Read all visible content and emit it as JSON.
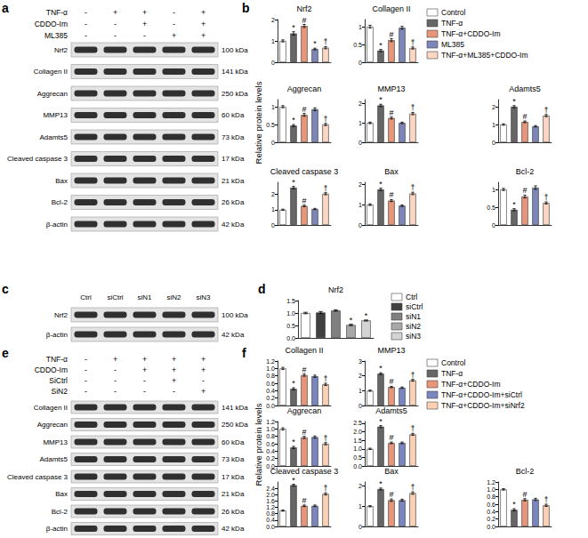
{
  "panels": [
    "a",
    "b",
    "c",
    "d",
    "e",
    "f"
  ],
  "blots": [
    {
      "panel": "a",
      "conditions": [
        {
          "name": "TNF-α",
          "signs": [
            "-",
            "+",
            "+",
            "-",
            "+"
          ]
        },
        {
          "name": "CDDO-Im",
          "signs": [
            "-",
            "-",
            "+",
            "-",
            "+"
          ]
        },
        {
          "name": "ML385",
          "signs": [
            "-",
            "-",
            "-",
            "+",
            "+"
          ]
        }
      ],
      "rows": [
        {
          "name": "Nrf2",
          "size": "100 kDa"
        },
        {
          "name": "Collagen II",
          "size": "141 kDa"
        },
        {
          "name": "Aggrecan",
          "size": "250 kDa"
        },
        {
          "name": "MMP13",
          "size": "60 kDa"
        },
        {
          "name": "Adamts5",
          "size": "73 kDa"
        },
        {
          "name": "Cleaved caspase 3",
          "size": "17 kDa"
        },
        {
          "name": "Bax",
          "size": "21 kDa"
        },
        {
          "name": "Bcl-2",
          "size": "26 kDa"
        },
        {
          "name": "β-actin",
          "size": "42 kDa"
        }
      ]
    },
    {
      "panel": "c",
      "lanes": [
        "Ctrl",
        "siCtrl",
        "siN1",
        "siN2",
        "siN3"
      ],
      "rows": [
        {
          "name": "Nrf2",
          "size": "100 kDa"
        },
        {
          "name": "β-actin",
          "size": "42 kDa"
        }
      ]
    },
    {
      "panel": "e",
      "conditions": [
        {
          "name": "TNF-α",
          "signs": [
            "-",
            "+",
            "+",
            "+",
            "+"
          ]
        },
        {
          "name": "CDDO-Im",
          "signs": [
            "-",
            "-",
            "+",
            "+",
            "+"
          ]
        },
        {
          "name": "SiCtrl",
          "signs": [
            "-",
            "-",
            "-",
            "+",
            "-"
          ]
        },
        {
          "name": "SiN2",
          "signs": [
            "-",
            "-",
            "-",
            "-",
            "+"
          ]
        }
      ],
      "rows": [
        {
          "name": "Collagen II",
          "size": "141 kDa"
        },
        {
          "name": "Aggrecan",
          "size": "250 kDa"
        },
        {
          "name": "MMP13",
          "size": "60 kDa"
        },
        {
          "name": "Adamts5",
          "size": "73 kDa"
        },
        {
          "name": "Cleaved caspase 3",
          "size": "17 kDa"
        },
        {
          "name": "Bax",
          "size": "21 kDa"
        },
        {
          "name": "Bcl-2",
          "size": "26 kDa"
        },
        {
          "name": "β-actin",
          "size": "42 kDa"
        }
      ]
    }
  ],
  "ylabels": [
    {
      "panel": "b",
      "text": "Relative protein levels"
    },
    {
      "panel": "f",
      "text": "Relative protein levels"
    }
  ],
  "chart_data": [
    {
      "type": "bar",
      "panel": "b",
      "title": "Nrf2",
      "categories": [
        "Control",
        "TNF-α",
        "TNF-α+CDDO-Im",
        "ML385",
        "TNF-α+ML385+CDDO-Im"
      ],
      "colors": [
        "#ffffff",
        "#666666",
        "#e8967a",
        "#7c86b8",
        "#fbd6c2"
      ],
      "values": [
        1,
        1.35,
        1.7,
        0.62,
        0.68
      ],
      "errors": [
        0.05,
        0.08,
        0.07,
        0.04,
        0.05
      ],
      "annotations": [
        null,
        "*",
        "#",
        "*",
        "†"
      ],
      "ylim": [
        0,
        2
      ],
      "yticks": [
        0,
        1,
        2
      ],
      "grid": false,
      "tick_labels": "y"
    },
    {
      "type": "bar",
      "panel": "b",
      "title": "Collagen II",
      "categories": [
        "Control",
        "TNF-α",
        "TNF-α+CDDO-Im",
        "ML385",
        "TNF-α+ML385+CDDO-Im"
      ],
      "colors": [
        "#ffffff",
        "#666666",
        "#e8967a",
        "#7c86b8",
        "#fbd6c2"
      ],
      "values": [
        1,
        0.33,
        0.62,
        0.97,
        0.4
      ],
      "errors": [
        0.04,
        0.03,
        0.04,
        0.04,
        0.03
      ],
      "annotations": [
        null,
        "*",
        "#",
        null,
        "†"
      ],
      "ylim": [
        0,
        1.2
      ],
      "yticks": [
        0,
        0.5,
        1
      ],
      "grid": false,
      "tick_labels": "y"
    },
    {
      "type": "bar",
      "panel": "b",
      "title": "Aggrecan",
      "categories": [
        "Control",
        "TNF-α",
        "TNF-α+CDDO-Im",
        "ML385",
        "TNF-α+ML385+CDDO-Im"
      ],
      "colors": [
        "#ffffff",
        "#666666",
        "#e8967a",
        "#7c86b8",
        "#fbd6c2"
      ],
      "values": [
        1,
        0.47,
        0.77,
        0.93,
        0.5
      ],
      "errors": [
        0.03,
        0.03,
        0.04,
        0.04,
        0.03
      ],
      "annotations": [
        null,
        "*",
        "#",
        null,
        "†"
      ],
      "ylim": [
        0,
        1.2
      ],
      "yticks": [
        0,
        0.5,
        1
      ],
      "grid": false,
      "tick_labels": "y"
    },
    {
      "type": "bar",
      "panel": "b",
      "title": "MMP13",
      "categories": [
        "Control",
        "TNF-α",
        "TNF-α+CDDO-Im",
        "ML385",
        "TNF-α+ML385+CDDO-Im"
      ],
      "colors": [
        "#ffffff",
        "#666666",
        "#e8967a",
        "#7c86b8",
        "#fbd6c2"
      ],
      "values": [
        1,
        1.9,
        1.25,
        1.0,
        1.48
      ],
      "errors": [
        0.04,
        0.06,
        0.05,
        0.04,
        0.06
      ],
      "annotations": [
        null,
        "*",
        "#",
        null,
        "†"
      ],
      "ylim": [
        0,
        2.2
      ],
      "yticks": [
        0,
        1,
        2
      ],
      "grid": false,
      "tick_labels": "y"
    },
    {
      "type": "bar",
      "panel": "b",
      "title": "Adamts5",
      "categories": [
        "Control",
        "TNF-α",
        "TNF-α+CDDO-Im",
        "ML385",
        "TNF-α+ML385+CDDO-Im"
      ],
      "colors": [
        "#ffffff",
        "#666666",
        "#e8967a",
        "#7c86b8",
        "#fbd6c2"
      ],
      "values": [
        1,
        2.0,
        1.15,
        0.9,
        1.5
      ],
      "errors": [
        0.04,
        0.06,
        0.05,
        0.04,
        0.06
      ],
      "annotations": [
        null,
        "*",
        "#",
        null,
        "†"
      ],
      "ylim": [
        0,
        2.4
      ],
      "yticks": [
        0,
        1,
        2
      ],
      "grid": false,
      "tick_labels": "y"
    },
    {
      "type": "bar",
      "panel": "b",
      "title": "Cleaved caspase 3",
      "categories": [
        "Control",
        "TNF-α",
        "TNF-α+CDDO-Im",
        "ML385",
        "TNF-α+ML385+CDDO-Im"
      ],
      "colors": [
        "#ffffff",
        "#666666",
        "#e8967a",
        "#7c86b8",
        "#fbd6c2"
      ],
      "values": [
        1,
        2.45,
        1.25,
        1.05,
        2.05
      ],
      "errors": [
        0.04,
        0.08,
        0.05,
        0.04,
        0.07
      ],
      "annotations": [
        null,
        "*",
        "#",
        null,
        "†"
      ],
      "ylim": [
        0,
        2.8
      ],
      "yticks": [
        0,
        1,
        2
      ],
      "grid": false,
      "tick_labels": "y"
    },
    {
      "type": "bar",
      "panel": "b",
      "title": "Bax",
      "categories": [
        "Control",
        "TNF-α",
        "TNF-α+CDDO-Im",
        "ML385",
        "TNF-α+ML385+CDDO-Im"
      ],
      "colors": [
        "#ffffff",
        "#666666",
        "#e8967a",
        "#7c86b8",
        "#fbd6c2"
      ],
      "values": [
        1,
        1.75,
        1.2,
        0.95,
        1.55
      ],
      "errors": [
        0.04,
        0.06,
        0.05,
        0.04,
        0.06
      ],
      "annotations": [
        null,
        "*",
        "#",
        null,
        "†"
      ],
      "ylim": [
        0,
        2.1
      ],
      "yticks": [
        0,
        1,
        2
      ],
      "grid": false,
      "tick_labels": "y"
    },
    {
      "type": "bar",
      "panel": "b",
      "title": "Bcl-2",
      "categories": [
        "Control",
        "TNF-α",
        "TNF-α+CDDO-Im",
        "ML385",
        "TNF-α+ML385+CDDO-Im"
      ],
      "colors": [
        "#ffffff",
        "#666666",
        "#e8967a",
        "#7c86b8",
        "#fbd6c2"
      ],
      "values": [
        1,
        0.43,
        0.8,
        1.05,
        0.62
      ],
      "errors": [
        0.03,
        0.03,
        0.04,
        0.05,
        0.03
      ],
      "annotations": [
        null,
        "*",
        "#",
        null,
        "†"
      ],
      "ylim": [
        0,
        1.2
      ],
      "yticks": [
        0,
        0.5,
        1
      ],
      "grid": false,
      "tick_labels": "y"
    },
    {
      "type": "bar",
      "panel": "d",
      "title": "Nrf2",
      "categories": [
        "Ctrl",
        "siCtrl",
        "siN1",
        "siN2",
        "siN3"
      ],
      "colors": [
        "#ffffff",
        "#404040",
        "#808080",
        "#a8a8a8",
        "#d4d4d4"
      ],
      "values": [
        1,
        1.02,
        1.1,
        0.52,
        0.7
      ],
      "errors": [
        0.03,
        0.04,
        0.03,
        0.03,
        0.02
      ],
      "annotations": [
        null,
        null,
        null,
        "*",
        "*"
      ],
      "ylim": [
        0,
        1.5
      ],
      "yticks": [
        {
          "value": 0,
          "label": "0.0"
        },
        {
          "value": 0.5,
          "label": "0.5"
        },
        {
          "value": 1,
          "label": "1.0"
        },
        {
          "value": 1.5,
          "label": "1.5"
        }
      ],
      "grid": false,
      "tick_labels": "y"
    },
    {
      "type": "bar",
      "panel": "f",
      "title": "Collagen II",
      "categories": [
        "Control",
        "TNF-α",
        "TNF-α+CDDO-Im",
        "TNF-α+CDDO-Im+siCtrl",
        "TNF-α+CDDO-Im+siNrf2"
      ],
      "colors": [
        "#ffffff",
        "#666666",
        "#e8967a",
        "#7a86c0",
        "#fbd0b5"
      ],
      "values": [
        1,
        0.45,
        0.82,
        0.79,
        0.57
      ],
      "errors": [
        0.03,
        0.03,
        0.03,
        0.03,
        0.03
      ],
      "annotations": [
        null,
        "*",
        "#",
        null,
        "†"
      ],
      "ylim": [
        0,
        1.2
      ],
      "yticks": [
        {
          "value": 0,
          "label": "0.0"
        },
        {
          "value": 0.2,
          "label": "0.2"
        },
        {
          "value": 0.4,
          "label": "0.4"
        },
        {
          "value": 0.6,
          "label": "0.6"
        },
        {
          "value": 0.8,
          "label": "0.8"
        },
        {
          "value": 1,
          "label": "1.0"
        },
        {
          "value": 1.2,
          "label": "1.2"
        }
      ],
      "grid": false,
      "tick_labels": "y"
    },
    {
      "type": "bar",
      "panel": "f",
      "title": "MMP13",
      "categories": [
        "Control",
        "TNF-α",
        "TNF-α+CDDO-Im",
        "TNF-α+CDDO-Im+siCtrl",
        "TNF-α+CDDO-Im+siNrf2"
      ],
      "colors": [
        "#ffffff",
        "#666666",
        "#e8967a",
        "#7a86c0",
        "#fbd0b5"
      ],
      "values": [
        1,
        2.15,
        1.25,
        1.2,
        1.7
      ],
      "errors": [
        0.04,
        0.06,
        0.05,
        0.05,
        0.06
      ],
      "annotations": [
        null,
        "*",
        "#",
        null,
        "†"
      ],
      "ylim": [
        0,
        3
      ],
      "yticks": [
        0,
        1,
        2,
        3
      ],
      "grid": false,
      "tick_labels": "y"
    },
    {
      "type": "bar",
      "panel": "f",
      "title": "Aggrecan",
      "categories": [
        "Control",
        "TNF-α",
        "TNF-α+CDDO-Im",
        "TNF-α+CDDO-Im+siCtrl",
        "TNF-α+CDDO-Im+siNrf2"
      ],
      "colors": [
        "#ffffff",
        "#666666",
        "#e8967a",
        "#7a86c0",
        "#fbd0b5"
      ],
      "values": [
        1,
        0.5,
        0.77,
        0.78,
        0.6
      ],
      "errors": [
        0.03,
        0.03,
        0.03,
        0.03,
        0.03
      ],
      "annotations": [
        null,
        "*",
        "#",
        null,
        "†"
      ],
      "ylim": [
        0,
        1.2
      ],
      "yticks": [
        {
          "value": 0,
          "label": "0.0"
        },
        {
          "value": 0.2,
          "label": "0.2"
        },
        {
          "value": 0.4,
          "label": "0.4"
        },
        {
          "value": 0.6,
          "label": "0.6"
        },
        {
          "value": 0.8,
          "label": "0.8"
        },
        {
          "value": 1,
          "label": "1.0"
        },
        {
          "value": 1.2,
          "label": "1.2"
        }
      ],
      "grid": false,
      "tick_labels": "y"
    },
    {
      "type": "bar",
      "panel": "f",
      "title": "Adamts5",
      "categories": [
        "Control",
        "TNF-α",
        "TNF-α+CDDO-Im",
        "TNF-α+CDDO-Im+siCtrl",
        "TNF-α+CDDO-Im+siNrf2"
      ],
      "colors": [
        "#ffffff",
        "#666666",
        "#e8967a",
        "#7a86c0",
        "#fbd0b5"
      ],
      "values": [
        1,
        2.3,
        1.35,
        1.35,
        1.85
      ],
      "errors": [
        0.04,
        0.06,
        0.05,
        0.05,
        0.06
      ],
      "annotations": [
        null,
        "*",
        "#",
        null,
        "†"
      ],
      "ylim": [
        0,
        2.6
      ],
      "yticks": [
        {
          "value": 0,
          "label": "0.0"
        },
        {
          "value": 0.5,
          "label": "0.5"
        },
        {
          "value": 1,
          "label": "1.0"
        },
        {
          "value": 1.5,
          "label": "1.5"
        },
        {
          "value": 2,
          "label": "2.0"
        },
        {
          "value": 2.5,
          "label": "2.5"
        }
      ],
      "grid": false,
      "tick_labels": "y"
    },
    {
      "type": "bar",
      "panel": "f",
      "title": "Cleaved caspase 3",
      "categories": [
        "Control",
        "TNF-α",
        "TNF-α+CDDO-Im",
        "TNF-α+CDDO-Im+siCtrl",
        "TNF-α+CDDO-Im+siNrf2"
      ],
      "colors": [
        "#ffffff",
        "#666666",
        "#e8967a",
        "#7a86c0",
        "#fbd0b5"
      ],
      "values": [
        1,
        2.6,
        1.3,
        1.3,
        2.05
      ],
      "errors": [
        0.04,
        0.06,
        0.05,
        0.05,
        0.07
      ],
      "annotations": [
        null,
        "*",
        "#",
        null,
        "†"
      ],
      "ylim": [
        0,
        2.8
      ],
      "yticks": [
        {
          "value": 0,
          "label": "0.0"
        },
        {
          "value": 0.4,
          "label": "0.4"
        },
        {
          "value": 0.8,
          "label": "0.8"
        },
        {
          "value": 1.2,
          "label": "1.2"
        },
        {
          "value": 1.6,
          "label": "1.6"
        },
        {
          "value": 2,
          "label": "2.0"
        },
        {
          "value": 2.4,
          "label": "2.4"
        }
      ],
      "grid": false,
      "tick_labels": "y"
    },
    {
      "type": "bar",
      "panel": "f",
      "title": "Bax",
      "categories": [
        "Control",
        "TNF-α",
        "TNF-α+CDDO-Im",
        "TNF-α+CDDO-Im+siCtrl",
        "TNF-α+CDDO-Im+siNrf2"
      ],
      "colors": [
        "#ffffff",
        "#666666",
        "#e8967a",
        "#7a86c0",
        "#fbd0b5"
      ],
      "values": [
        1,
        1.85,
        1.3,
        1.3,
        1.65
      ],
      "errors": [
        0.03,
        0.05,
        0.06,
        0.05,
        0.06
      ],
      "annotations": [
        null,
        "*",
        "#",
        null,
        "†"
      ],
      "ylim": [
        0,
        2.2
      ],
      "yticks": [
        0,
        1,
        2
      ],
      "grid": false,
      "tick_labels": "y"
    },
    {
      "type": "bar",
      "panel": "f",
      "title": "Bcl-2",
      "categories": [
        "Control",
        "TNF-α",
        "TNF-α+CDDO-Im",
        "TNF-α+CDDO-Im+siCtrl",
        "TNF-α+CDDO-Im+siNrf2"
      ],
      "colors": [
        "#ffffff",
        "#666666",
        "#e8967a",
        "#7a86c0",
        "#fbd0b5"
      ],
      "values": [
        1,
        0.45,
        0.72,
        0.73,
        0.57
      ],
      "errors": [
        0.02,
        0.03,
        0.03,
        0.03,
        0.03
      ],
      "annotations": [
        null,
        "*",
        "#",
        null,
        "†"
      ],
      "ylim": [
        0,
        1.2
      ],
      "yticks": [
        {
          "value": 0,
          "label": "0.0"
        },
        {
          "value": 0.2,
          "label": "0.2"
        },
        {
          "value": 0.4,
          "label": "0.4"
        },
        {
          "value": 0.6,
          "label": "0.6"
        },
        {
          "value": 0.8,
          "label": "0.8"
        },
        {
          "value": 1,
          "label": "1.0"
        },
        {
          "value": 1.2,
          "label": "1.2"
        }
      ],
      "grid": false,
      "tick_labels": "y"
    }
  ]
}
